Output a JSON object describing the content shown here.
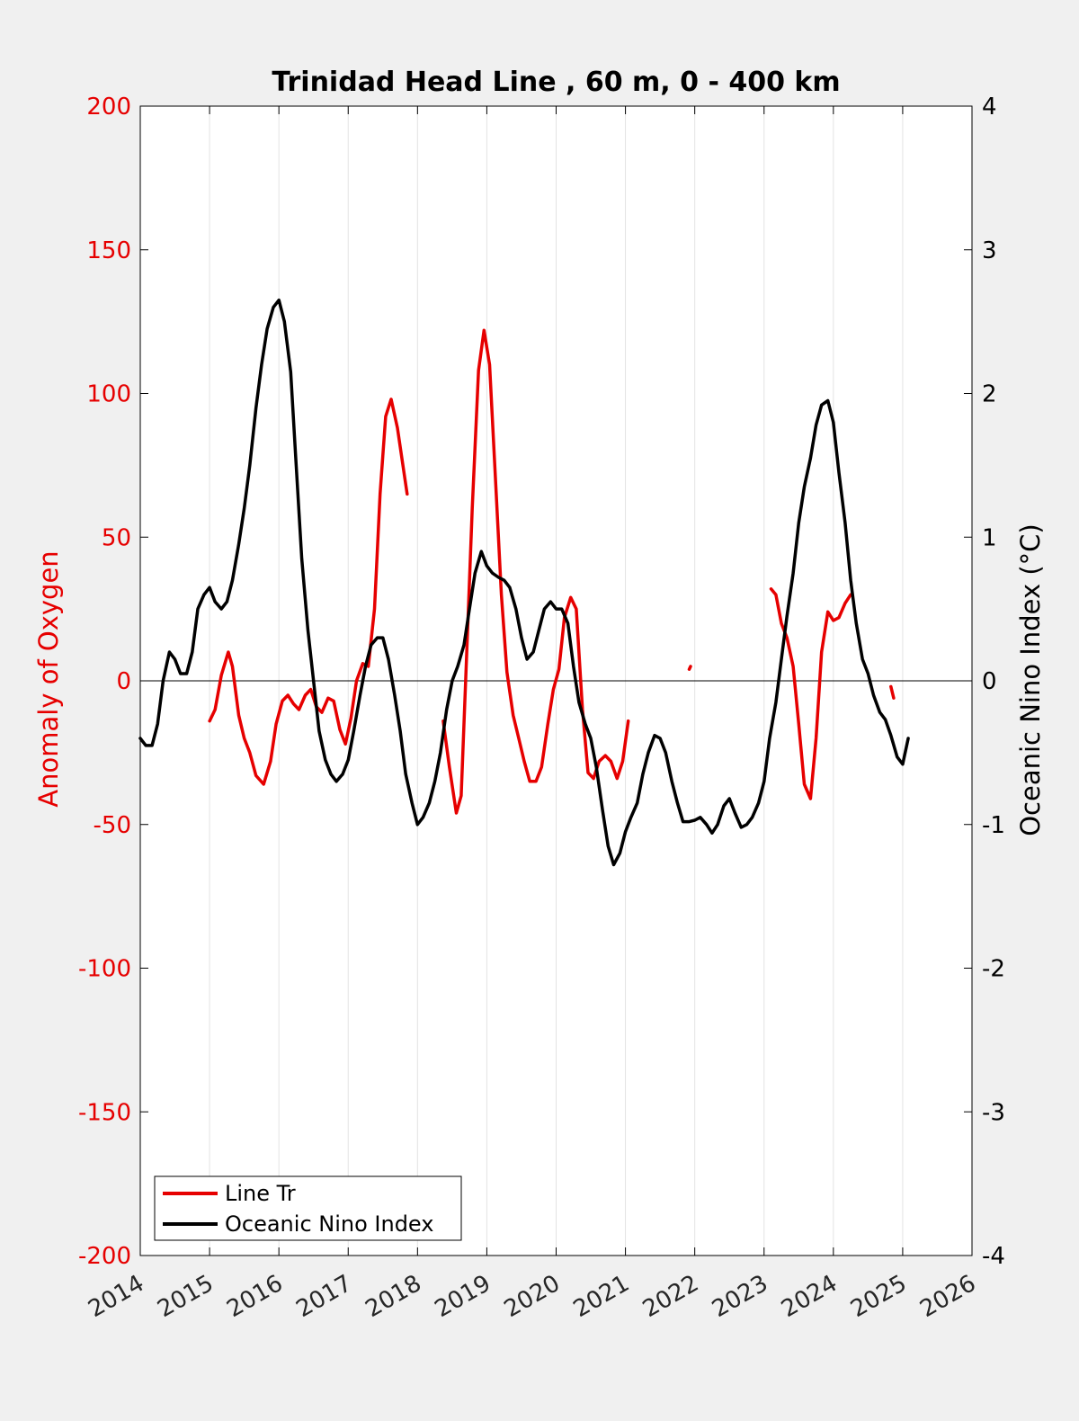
{
  "chart_data": {
    "type": "line",
    "title": "Trinidad Head Line , 60 m, 0 - 400 km",
    "xlim": [
      2014,
      2026
    ],
    "x_ticks": [
      "2014",
      "2015",
      "2016",
      "2017",
      "2018",
      "2019",
      "2020",
      "2021",
      "2022",
      "2023",
      "2024",
      "2025",
      "2026"
    ],
    "grid": "vertical",
    "legend_position": "bottom-left",
    "y_left": {
      "label": "Anomaly of Oxygen",
      "lim": [
        -200,
        200
      ],
      "ticks": [
        "200",
        "150",
        "100",
        "50",
        "0",
        "-50",
        "-100",
        "-150",
        "-200"
      ],
      "color": "#e60000"
    },
    "y_right": {
      "label": "Oceanic Nino Index (°C)",
      "lim": [
        -4,
        4
      ],
      "ticks": [
        "4",
        "3",
        "2",
        "1",
        "0",
        "-1",
        "-2",
        "-3",
        "-4"
      ],
      "color": "#000000"
    },
    "series": [
      {
        "name": "Line Tr",
        "axis": "left",
        "color": "#e60000",
        "segments": [
          [
            [
              2015.0,
              -14
            ],
            [
              2015.08,
              -10
            ],
            [
              2015.17,
              2
            ],
            [
              2015.27,
              10
            ],
            [
              2015.33,
              5
            ],
            [
              2015.42,
              -12
            ],
            [
              2015.5,
              -20
            ],
            [
              2015.58,
              -25
            ],
            [
              2015.67,
              -33
            ],
            [
              2015.78,
              -36
            ],
            [
              2015.88,
              -28
            ],
            [
              2015.96,
              -15
            ],
            [
              2016.05,
              -7
            ],
            [
              2016.13,
              -5
            ],
            [
              2016.21,
              -8
            ],
            [
              2016.29,
              -10
            ],
            [
              2016.38,
              -5
            ],
            [
              2016.46,
              -3
            ],
            [
              2016.54,
              -9
            ],
            [
              2016.62,
              -11
            ],
            [
              2016.71,
              -6
            ],
            [
              2016.79,
              -7
            ],
            [
              2016.88,
              -17
            ],
            [
              2016.96,
              -22
            ],
            [
              2017.04,
              -13
            ],
            [
              2017.12,
              0
            ],
            [
              2017.21,
              6
            ],
            [
              2017.29,
              5
            ],
            [
              2017.38,
              25
            ],
            [
              2017.46,
              65
            ],
            [
              2017.54,
              92
            ],
            [
              2017.62,
              98
            ],
            [
              2017.71,
              88
            ],
            [
              2017.79,
              75
            ],
            [
              2017.85,
              65
            ]
          ],
          [
            [
              2018.37,
              -14
            ],
            [
              2018.46,
              -30
            ],
            [
              2018.56,
              -46
            ],
            [
              2018.63,
              -40
            ],
            [
              2018.71,
              10
            ],
            [
              2018.79,
              60
            ],
            [
              2018.88,
              108
            ],
            [
              2018.96,
              122
            ],
            [
              2019.04,
              110
            ],
            [
              2019.13,
              68
            ],
            [
              2019.21,
              30
            ],
            [
              2019.29,
              3
            ],
            [
              2019.38,
              -12
            ],
            [
              2019.46,
              -20
            ],
            [
              2019.54,
              -28
            ],
            [
              2019.62,
              -35
            ],
            [
              2019.71,
              -35
            ],
            [
              2019.79,
              -30
            ],
            [
              2019.88,
              -15
            ],
            [
              2019.96,
              -3
            ],
            [
              2020.04,
              4
            ],
            [
              2020.12,
              22
            ],
            [
              2020.21,
              29
            ],
            [
              2020.29,
              25
            ],
            [
              2020.38,
              -10
            ],
            [
              2020.46,
              -32
            ],
            [
              2020.54,
              -34
            ],
            [
              2020.62,
              -28
            ],
            [
              2020.71,
              -26
            ],
            [
              2020.79,
              -28
            ],
            [
              2020.88,
              -34
            ],
            [
              2020.96,
              -28
            ],
            [
              2021.04,
              -14
            ]
          ],
          [
            [
              2021.92,
              4
            ],
            [
              2021.94,
              5
            ]
          ],
          [
            [
              2023.1,
              32
            ],
            [
              2023.17,
              30
            ],
            [
              2023.25,
              20
            ],
            [
              2023.33,
              15
            ],
            [
              2023.42,
              5
            ],
            [
              2023.5,
              -15
            ],
            [
              2023.58,
              -36
            ],
            [
              2023.67,
              -41
            ],
            [
              2023.75,
              -20
            ],
            [
              2023.83,
              10
            ],
            [
              2023.92,
              24
            ],
            [
              2024.0,
              21
            ],
            [
              2024.08,
              22
            ],
            [
              2024.17,
              27
            ],
            [
              2024.25,
              30
            ]
          ],
          [
            [
              2024.83,
              -2
            ],
            [
              2024.87,
              -6
            ]
          ]
        ]
      },
      {
        "name": "Oceanic Nino Index",
        "axis": "right",
        "color": "#000000",
        "segments": [
          [
            [
              2014.0,
              -0.4
            ],
            [
              2014.08,
              -0.45
            ],
            [
              2014.17,
              -0.45
            ],
            [
              2014.25,
              -0.3
            ],
            [
              2014.33,
              0
            ],
            [
              2014.42,
              0.2
            ],
            [
              2014.5,
              0.15
            ],
            [
              2014.58,
              0.05
            ],
            [
              2014.67,
              0.05
            ],
            [
              2014.75,
              0.2
            ],
            [
              2014.83,
              0.5
            ],
            [
              2014.92,
              0.6
            ],
            [
              2015.0,
              0.65
            ],
            [
              2015.08,
              0.55
            ],
            [
              2015.17,
              0.5
            ],
            [
              2015.25,
              0.55
            ],
            [
              2015.33,
              0.7
            ],
            [
              2015.42,
              0.95
            ],
            [
              2015.5,
              1.2
            ],
            [
              2015.58,
              1.5
            ],
            [
              2015.67,
              1.9
            ],
            [
              2015.75,
              2.2
            ],
            [
              2015.83,
              2.45
            ],
            [
              2015.92,
              2.6
            ],
            [
              2016.0,
              2.65
            ],
            [
              2016.08,
              2.5
            ],
            [
              2016.17,
              2.15
            ],
            [
              2016.25,
              1.5
            ],
            [
              2016.33,
              0.85
            ],
            [
              2016.42,
              0.35
            ],
            [
              2016.5,
              0.0
            ],
            [
              2016.58,
              -0.35
            ],
            [
              2016.67,
              -0.55
            ],
            [
              2016.75,
              -0.65
            ],
            [
              2016.83,
              -0.7
            ],
            [
              2016.92,
              -0.65
            ],
            [
              2017.0,
              -0.55
            ],
            [
              2017.08,
              -0.35
            ],
            [
              2017.17,
              -0.1
            ],
            [
              2017.25,
              0.1
            ],
            [
              2017.33,
              0.25
            ],
            [
              2017.42,
              0.3
            ],
            [
              2017.5,
              0.3
            ],
            [
              2017.58,
              0.15
            ],
            [
              2017.67,
              -0.1
            ],
            [
              2017.75,
              -0.35
            ],
            [
              2017.83,
              -0.65
            ],
            [
              2017.92,
              -0.85
            ],
            [
              2018.0,
              -1.0
            ],
            [
              2018.08,
              -0.95
            ],
            [
              2018.17,
              -0.85
            ],
            [
              2018.25,
              -0.7
            ],
            [
              2018.33,
              -0.5
            ],
            [
              2018.42,
              -0.2
            ],
            [
              2018.5,
              0.0
            ],
            [
              2018.58,
              0.1
            ],
            [
              2018.67,
              0.25
            ],
            [
              2018.75,
              0.5
            ],
            [
              2018.83,
              0.75
            ],
            [
              2018.92,
              0.9
            ],
            [
              2019.0,
              0.8
            ],
            [
              2019.08,
              0.75
            ],
            [
              2019.17,
              0.72
            ],
            [
              2019.25,
              0.7
            ],
            [
              2019.33,
              0.65
            ],
            [
              2019.42,
              0.5
            ],
            [
              2019.5,
              0.3
            ],
            [
              2019.58,
              0.15
            ],
            [
              2019.67,
              0.2
            ],
            [
              2019.75,
              0.35
            ],
            [
              2019.83,
              0.5
            ],
            [
              2019.92,
              0.55
            ],
            [
              2020.0,
              0.5
            ],
            [
              2020.08,
              0.5
            ],
            [
              2020.17,
              0.4
            ],
            [
              2020.25,
              0.1
            ],
            [
              2020.33,
              -0.15
            ],
            [
              2020.42,
              -0.3
            ],
            [
              2020.5,
              -0.4
            ],
            [
              2020.58,
              -0.6
            ],
            [
              2020.67,
              -0.9
            ],
            [
              2020.75,
              -1.15
            ],
            [
              2020.83,
              -1.28
            ],
            [
              2020.92,
              -1.2
            ],
            [
              2021.0,
              -1.05
            ],
            [
              2021.08,
              -0.95
            ],
            [
              2021.17,
              -0.85
            ],
            [
              2021.25,
              -0.65
            ],
            [
              2021.33,
              -0.5
            ],
            [
              2021.42,
              -0.38
            ],
            [
              2021.5,
              -0.4
            ],
            [
              2021.58,
              -0.5
            ],
            [
              2021.67,
              -0.7
            ],
            [
              2021.75,
              -0.85
            ],
            [
              2021.83,
              -0.98
            ],
            [
              2021.92,
              -0.98
            ],
            [
              2022.0,
              -0.97
            ],
            [
              2022.08,
              -0.95
            ],
            [
              2022.17,
              -1.0
            ],
            [
              2022.25,
              -1.06
            ],
            [
              2022.33,
              -1.0
            ],
            [
              2022.42,
              -0.87
            ],
            [
              2022.5,
              -0.82
            ],
            [
              2022.58,
              -0.92
            ],
            [
              2022.67,
              -1.02
            ],
            [
              2022.75,
              -1.0
            ],
            [
              2022.83,
              -0.95
            ],
            [
              2022.92,
              -0.85
            ],
            [
              2023.0,
              -0.7
            ],
            [
              2023.08,
              -0.4
            ],
            [
              2023.17,
              -0.15
            ],
            [
              2023.25,
              0.15
            ],
            [
              2023.33,
              0.45
            ],
            [
              2023.42,
              0.75
            ],
            [
              2023.5,
              1.1
            ],
            [
              2023.58,
              1.35
            ],
            [
              2023.67,
              1.55
            ],
            [
              2023.75,
              1.78
            ],
            [
              2023.83,
              1.92
            ],
            [
              2023.92,
              1.95
            ],
            [
              2024.0,
              1.8
            ],
            [
              2024.08,
              1.45
            ],
            [
              2024.17,
              1.1
            ],
            [
              2024.25,
              0.7
            ],
            [
              2024.33,
              0.4
            ],
            [
              2024.42,
              0.15
            ],
            [
              2024.5,
              0.05
            ],
            [
              2024.58,
              -0.1
            ],
            [
              2024.67,
              -0.22
            ],
            [
              2024.75,
              -0.27
            ],
            [
              2024.83,
              -0.38
            ],
            [
              2024.92,
              -0.53
            ],
            [
              2025.0,
              -0.58
            ],
            [
              2025.08,
              -0.4
            ]
          ]
        ]
      }
    ]
  }
}
